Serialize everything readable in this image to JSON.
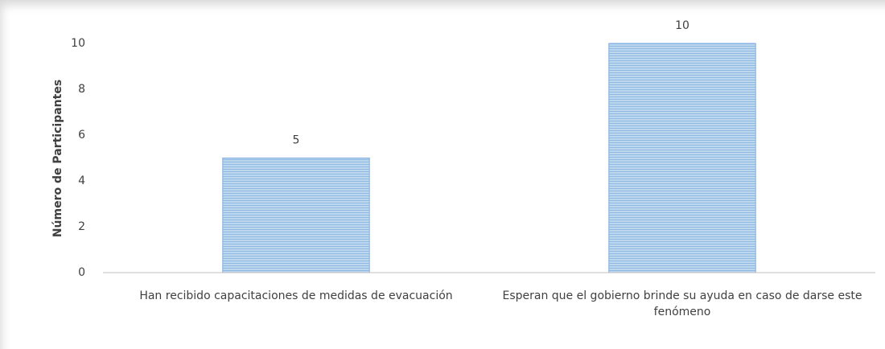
{
  "chart_data": {
    "type": "bar",
    "y_axis_label": "Número de Participantes",
    "categories": [
      "Han recibido capacitaciones de medidas de evacuación",
      "Esperan que el gobierno brinde su ayuda en caso de darse este fenómeno"
    ],
    "values": [
      5,
      10
    ],
    "color": "#9dc3e6",
    "ylim": [
      0,
      10
    ],
    "yticks": [
      0,
      2,
      4,
      6,
      8,
      10
    ],
    "grid": false,
    "data_labels": true
  }
}
